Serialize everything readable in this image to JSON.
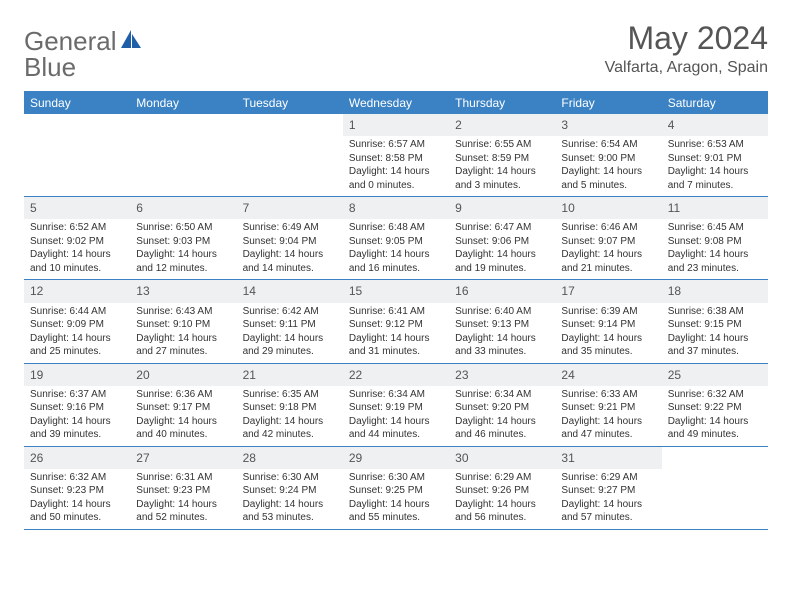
{
  "logo": {
    "text1": "General",
    "text2": "Blue"
  },
  "title": "May 2024",
  "location": "Valfarta, Aragon, Spain",
  "colors": {
    "header_bg": "#3b82c4",
    "header_text": "#ffffff",
    "daynum_bg": "#eef0f2",
    "border": "#3b82c4",
    "text": "#333333",
    "logo_gray": "#6b6b6b",
    "logo_blue": "#1f5fa8"
  },
  "day_labels": [
    "Sunday",
    "Monday",
    "Tuesday",
    "Wednesday",
    "Thursday",
    "Friday",
    "Saturday"
  ],
  "weeks": [
    [
      null,
      null,
      null,
      {
        "n": "1",
        "sr": "6:57 AM",
        "ss": "8:58 PM",
        "dl": "14 hours and 0 minutes."
      },
      {
        "n": "2",
        "sr": "6:55 AM",
        "ss": "8:59 PM",
        "dl": "14 hours and 3 minutes."
      },
      {
        "n": "3",
        "sr": "6:54 AM",
        "ss": "9:00 PM",
        "dl": "14 hours and 5 minutes."
      },
      {
        "n": "4",
        "sr": "6:53 AM",
        "ss": "9:01 PM",
        "dl": "14 hours and 7 minutes."
      }
    ],
    [
      {
        "n": "5",
        "sr": "6:52 AM",
        "ss": "9:02 PM",
        "dl": "14 hours and 10 minutes."
      },
      {
        "n": "6",
        "sr": "6:50 AM",
        "ss": "9:03 PM",
        "dl": "14 hours and 12 minutes."
      },
      {
        "n": "7",
        "sr": "6:49 AM",
        "ss": "9:04 PM",
        "dl": "14 hours and 14 minutes."
      },
      {
        "n": "8",
        "sr": "6:48 AM",
        "ss": "9:05 PM",
        "dl": "14 hours and 16 minutes."
      },
      {
        "n": "9",
        "sr": "6:47 AM",
        "ss": "9:06 PM",
        "dl": "14 hours and 19 minutes."
      },
      {
        "n": "10",
        "sr": "6:46 AM",
        "ss": "9:07 PM",
        "dl": "14 hours and 21 minutes."
      },
      {
        "n": "11",
        "sr": "6:45 AM",
        "ss": "9:08 PM",
        "dl": "14 hours and 23 minutes."
      }
    ],
    [
      {
        "n": "12",
        "sr": "6:44 AM",
        "ss": "9:09 PM",
        "dl": "14 hours and 25 minutes."
      },
      {
        "n": "13",
        "sr": "6:43 AM",
        "ss": "9:10 PM",
        "dl": "14 hours and 27 minutes."
      },
      {
        "n": "14",
        "sr": "6:42 AM",
        "ss": "9:11 PM",
        "dl": "14 hours and 29 minutes."
      },
      {
        "n": "15",
        "sr": "6:41 AM",
        "ss": "9:12 PM",
        "dl": "14 hours and 31 minutes."
      },
      {
        "n": "16",
        "sr": "6:40 AM",
        "ss": "9:13 PM",
        "dl": "14 hours and 33 minutes."
      },
      {
        "n": "17",
        "sr": "6:39 AM",
        "ss": "9:14 PM",
        "dl": "14 hours and 35 minutes."
      },
      {
        "n": "18",
        "sr": "6:38 AM",
        "ss": "9:15 PM",
        "dl": "14 hours and 37 minutes."
      }
    ],
    [
      {
        "n": "19",
        "sr": "6:37 AM",
        "ss": "9:16 PM",
        "dl": "14 hours and 39 minutes."
      },
      {
        "n": "20",
        "sr": "6:36 AM",
        "ss": "9:17 PM",
        "dl": "14 hours and 40 minutes."
      },
      {
        "n": "21",
        "sr": "6:35 AM",
        "ss": "9:18 PM",
        "dl": "14 hours and 42 minutes."
      },
      {
        "n": "22",
        "sr": "6:34 AM",
        "ss": "9:19 PM",
        "dl": "14 hours and 44 minutes."
      },
      {
        "n": "23",
        "sr": "6:34 AM",
        "ss": "9:20 PM",
        "dl": "14 hours and 46 minutes."
      },
      {
        "n": "24",
        "sr": "6:33 AM",
        "ss": "9:21 PM",
        "dl": "14 hours and 47 minutes."
      },
      {
        "n": "25",
        "sr": "6:32 AM",
        "ss": "9:22 PM",
        "dl": "14 hours and 49 minutes."
      }
    ],
    [
      {
        "n": "26",
        "sr": "6:32 AM",
        "ss": "9:23 PM",
        "dl": "14 hours and 50 minutes."
      },
      {
        "n": "27",
        "sr": "6:31 AM",
        "ss": "9:23 PM",
        "dl": "14 hours and 52 minutes."
      },
      {
        "n": "28",
        "sr": "6:30 AM",
        "ss": "9:24 PM",
        "dl": "14 hours and 53 minutes."
      },
      {
        "n": "29",
        "sr": "6:30 AM",
        "ss": "9:25 PM",
        "dl": "14 hours and 55 minutes."
      },
      {
        "n": "30",
        "sr": "6:29 AM",
        "ss": "9:26 PM",
        "dl": "14 hours and 56 minutes."
      },
      {
        "n": "31",
        "sr": "6:29 AM",
        "ss": "9:27 PM",
        "dl": "14 hours and 57 minutes."
      },
      null
    ]
  ],
  "labels": {
    "sunrise": "Sunrise:",
    "sunset": "Sunset:",
    "daylight": "Daylight:"
  }
}
